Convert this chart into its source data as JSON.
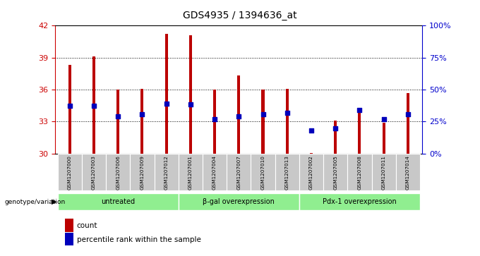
{
  "title": "GDS4935 / 1394636_at",
  "samples": [
    "GSM1207000",
    "GSM1207003",
    "GSM1207006",
    "GSM1207009",
    "GSM1207012",
    "GSM1207001",
    "GSM1207004",
    "GSM1207007",
    "GSM1207010",
    "GSM1207013",
    "GSM1207002",
    "GSM1207005",
    "GSM1207008",
    "GSM1207011",
    "GSM1207014"
  ],
  "bar_values": [
    38.3,
    39.1,
    36.0,
    36.1,
    41.2,
    41.1,
    36.0,
    37.3,
    36.0,
    36.1,
    30.05,
    33.1,
    34.2,
    32.9,
    35.7
  ],
  "percentile_values": [
    34.5,
    34.5,
    33.5,
    33.7,
    34.7,
    34.6,
    33.2,
    33.5,
    33.7,
    33.8,
    32.2,
    32.4,
    34.1,
    33.2,
    33.7
  ],
  "ymin": 30,
  "ymax": 42,
  "yticks": [
    30,
    33,
    36,
    39,
    42
  ],
  "right_yticks": [
    0,
    25,
    50,
    75,
    100
  ],
  "right_yticklabels": [
    "0%",
    "25%",
    "50%",
    "75%",
    "100%"
  ],
  "bar_color": "#BB0000",
  "dot_color": "#0000BB",
  "tick_label_color_left": "#CC0000",
  "tick_label_color_right": "#0000CC",
  "groups": [
    {
      "label": "untreated",
      "start": 0,
      "end": 5
    },
    {
      "label": "β-gal overexpression",
      "start": 5,
      "end": 10
    },
    {
      "label": "Pdx-1 overexpression",
      "start": 10,
      "end": 15
    }
  ],
  "group_bg_color": "#90EE90",
  "xlabel_area": "genotype/variation",
  "legend_count_label": "count",
  "legend_percentile_label": "percentile rank within the sample",
  "bar_width": 0.12,
  "xaxis_bg_color": "#C8C8C8"
}
